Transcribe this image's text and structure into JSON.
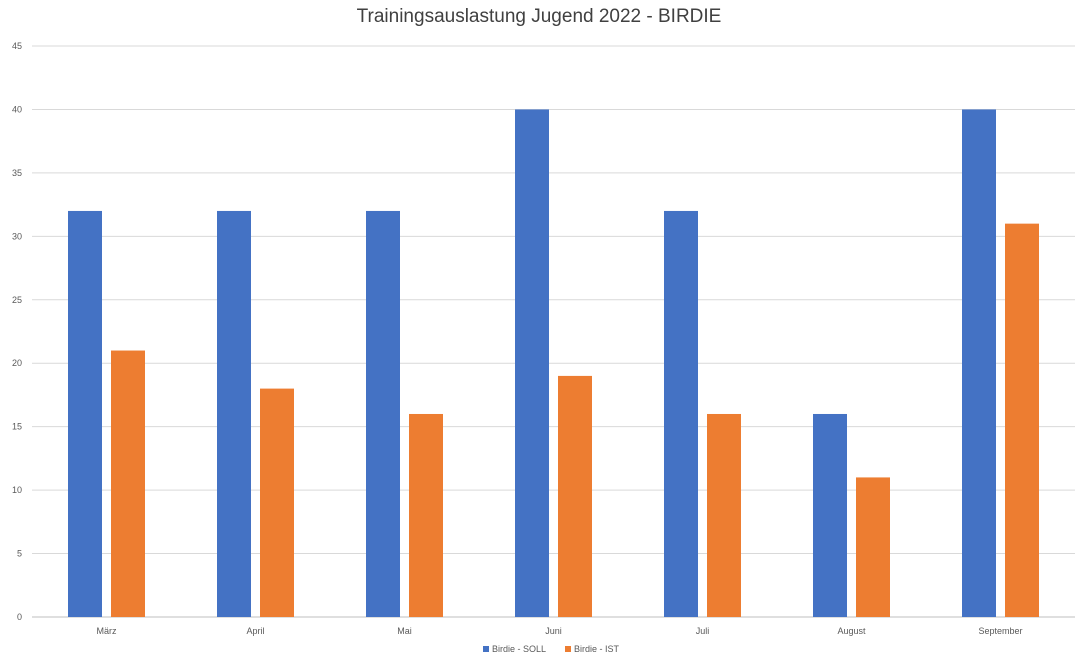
{
  "chart_data": {
    "type": "bar",
    "title": "Trainingsauslastung Jugend 2022 - BIRDIE",
    "categories": [
      "März",
      "April",
      "Mai",
      "Juni",
      "Juli",
      "August",
      "September"
    ],
    "series": [
      {
        "name": "Birdie - SOLL",
        "color": "#4472C4",
        "values": [
          32,
          32,
          32,
          40,
          32,
          16,
          40
        ]
      },
      {
        "name": "Birdie - IST",
        "color": "#ED7D31",
        "values": [
          21,
          18,
          16,
          19,
          16,
          11,
          31
        ]
      }
    ],
    "ylim": [
      0,
      45
    ],
    "yticks": [
      0,
      5,
      10,
      15,
      20,
      25,
      30,
      35,
      40,
      45
    ],
    "grid": true,
    "legend": "bottom"
  }
}
